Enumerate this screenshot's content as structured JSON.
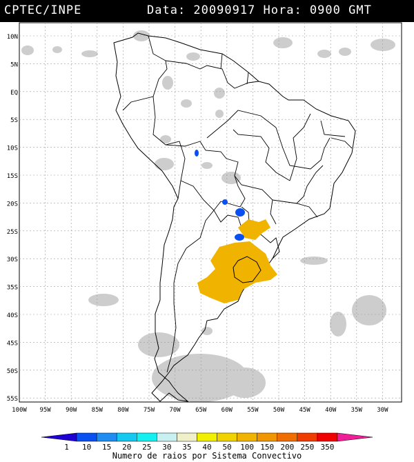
{
  "header": {
    "source": "CPTEC/INPE",
    "datetime": "Data: 20090917 Hora: 0900 GMT"
  },
  "map": {
    "lat_labels": [
      "10N",
      "5N",
      "EQ",
      "5S",
      "10S",
      "15S",
      "20S",
      "25S",
      "30S",
      "35S",
      "40S",
      "45S",
      "50S",
      "55S"
    ],
    "lon_labels": [
      "100W",
      "95W",
      "90W",
      "85W",
      "80W",
      "75W",
      "70W",
      "65W",
      "60W",
      "55W",
      "50W",
      "45W",
      "40W",
      "35W",
      "30W"
    ],
    "colors": {
      "cloud": "#c8c8c8",
      "coast": "#000000",
      "grid": "#999999"
    }
  },
  "legend": {
    "ticks": [
      "1",
      "10",
      "15",
      "20",
      "25",
      "30",
      "35",
      "40",
      "50",
      "100",
      "150",
      "200",
      "250",
      "350"
    ],
    "colors": [
      "#1e00d2",
      "#0a50f0",
      "#1e8cf0",
      "#14c8f0",
      "#14f0f0",
      "#c8f0f0",
      "#f0f0c8",
      "#f0f000",
      "#f0d200",
      "#f0b400",
      "#f09600",
      "#f06e00",
      "#f03c00",
      "#f00000",
      "#f01e96"
    ],
    "title": "Numero de raios por Sistema Convectivo"
  }
}
